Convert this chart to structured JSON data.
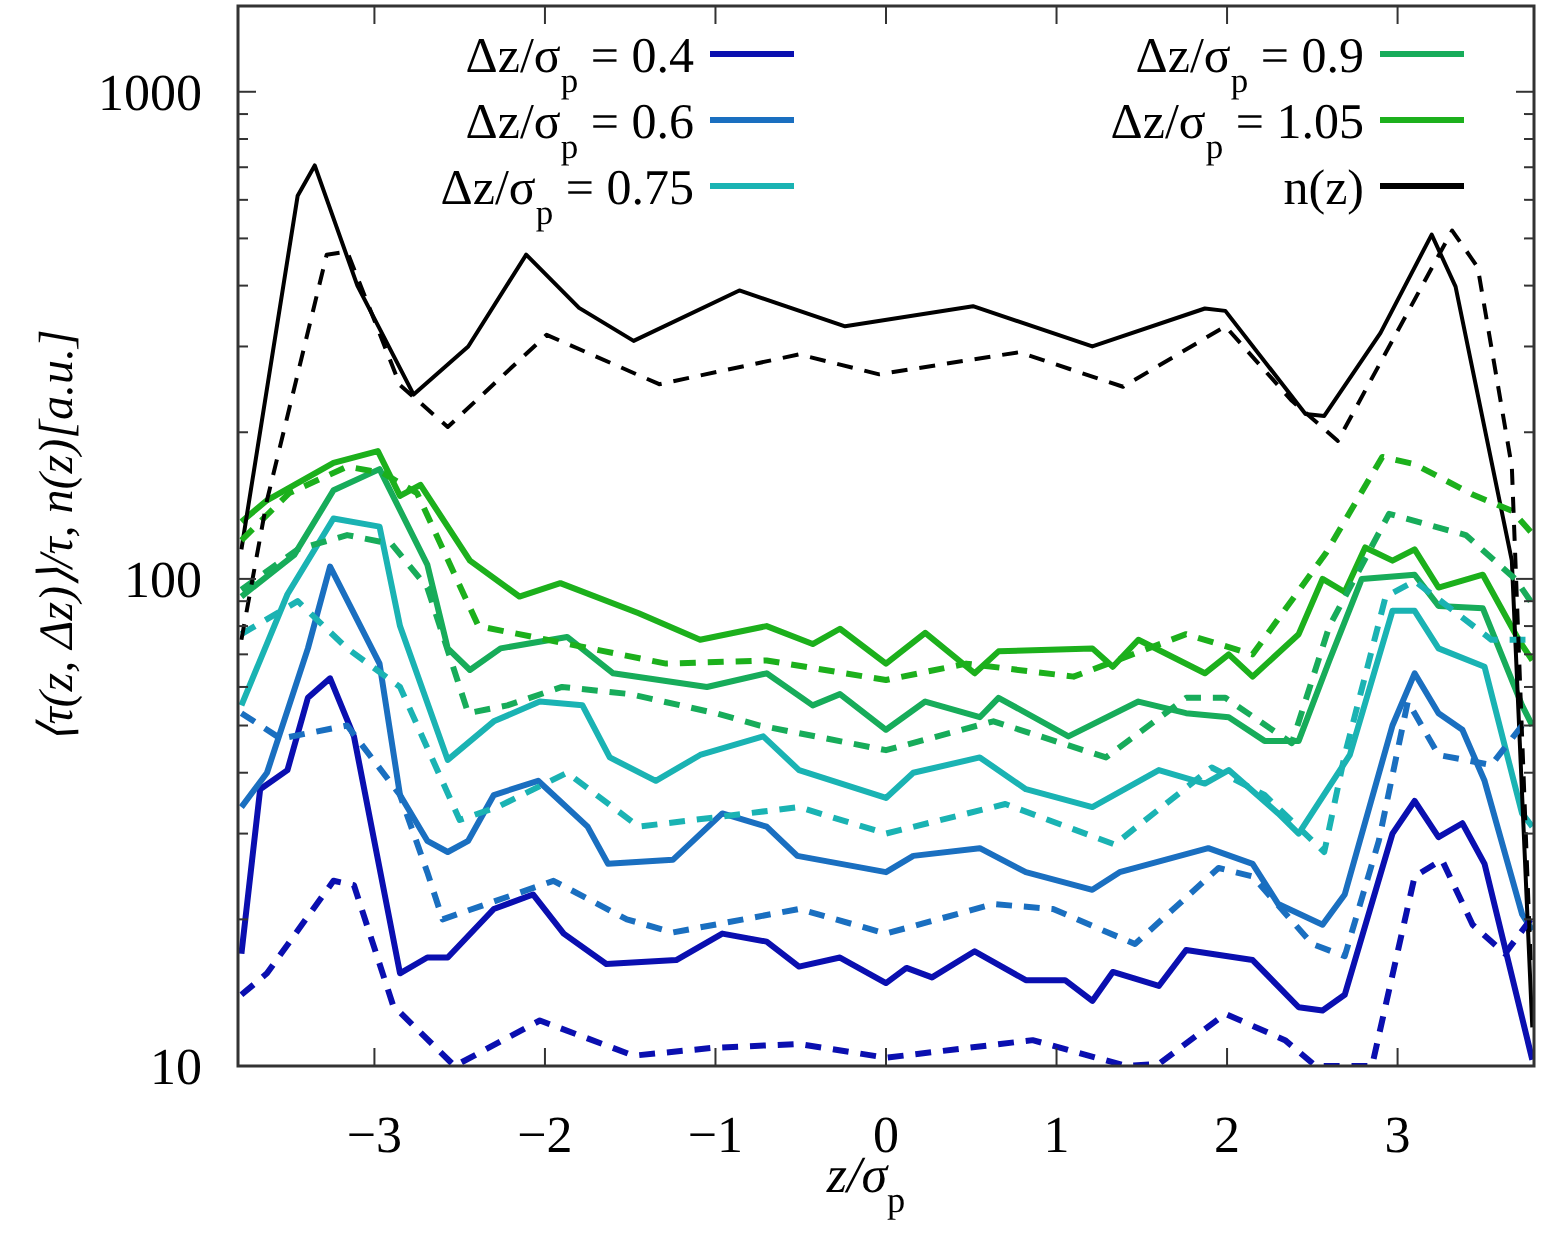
{
  "chart_data": {
    "type": "line",
    "xlabel": "z/σ$_{p}$",
    "ylabel": "⟨τ(z, Δz)⟩/τ,  n(z)[a.u.]",
    "log": "y",
    "xlim": [
      -3.8,
      3.8
    ],
    "ylim": [
      10,
      1500
    ],
    "xticks": [
      {
        "value": -3,
        "label": "−3"
      },
      {
        "value": -2,
        "label": "−2"
      },
      {
        "value": -1,
        "label": "−1"
      },
      0,
      1,
      2,
      3
    ],
    "yticks": [
      10,
      {
        "value": 20,
        "label": null
      },
      {
        "value": 30,
        "label": null
      },
      {
        "value": 40,
        "label": null
      },
      {
        "value": 50,
        "label": null
      },
      {
        "value": 60,
        "label": null
      },
      {
        "value": 70,
        "label": null
      },
      {
        "value": 80,
        "label": null
      },
      {
        "value": 90,
        "label": null
      },
      100,
      {
        "value": 200,
        "label": null
      },
      {
        "value": 300,
        "label": null
      },
      {
        "value": 400,
        "label": null
      },
      {
        "value": 500,
        "label": null
      },
      {
        "value": 600,
        "label": null
      },
      {
        "value": 700,
        "label": null
      },
      {
        "value": 800,
        "label": null
      },
      {
        "value": 900,
        "label": null
      },
      1000
    ],
    "grid": false,
    "legend": "top",
    "series": [
      {
        "name": "Δz/σ$_{p}$ = 0.4",
        "color": "#0a0fb0",
        "line_style": "solid",
        "x": [
          -3.78,
          -3.67,
          -3.51,
          -3.39,
          -3.26,
          -3.12,
          -2.85,
          -2.69,
          -2.57,
          -2.3,
          -2.07,
          -1.89,
          -1.64,
          -1.23,
          -0.96,
          -0.7,
          -0.51,
          -0.27,
          0,
          0.12,
          0.27,
          0.52,
          0.82,
          1.05,
          1.21,
          1.33,
          1.6,
          1.76,
          2.15,
          2.42,
          2.56,
          2.69,
          2.97,
          3.1,
          3.24,
          3.38,
          3.51,
          3.79
        ],
        "values": [
          17,
          37,
          40.5,
          57,
          62.5,
          47.5,
          15.5,
          16.7,
          16.7,
          21,
          22.5,
          18.7,
          16.2,
          16.5,
          18.7,
          18,
          16,
          16.7,
          14.8,
          15.9,
          15.2,
          17.2,
          15,
          15,
          13.6,
          15.6,
          14.6,
          17.3,
          16.5,
          13.2,
          13,
          14,
          30,
          35,
          29.5,
          31.5,
          26,
          10.3
        ]
      },
      {
        "name": "Δz/σ$_{p}$ = 0.6",
        "color": "#1a6fc0",
        "line_style": "solid",
        "x": [
          -3.78,
          -3.63,
          -3.39,
          -3.26,
          -2.97,
          -2.85,
          -2.69,
          -2.57,
          -2.45,
          -2.3,
          -2.04,
          -1.75,
          -1.63,
          -1.25,
          -0.96,
          -0.7,
          -0.52,
          0,
          0.16,
          0.55,
          0.82,
          1.21,
          1.37,
          1.89,
          2.15,
          2.3,
          2.56,
          2.69,
          2.97,
          3.1,
          3.24,
          3.38,
          3.51,
          3.73,
          3.79
        ],
        "values": [
          34,
          40,
          72,
          106,
          67,
          36,
          29,
          27.5,
          29,
          36,
          38.5,
          31,
          26,
          26.5,
          33,
          31,
          27,
          25,
          27,
          28,
          25,
          23,
          25,
          28,
          26,
          21.5,
          19.5,
          22.5,
          50,
          64,
          53,
          49,
          38.5,
          20.5,
          19
        ]
      },
      {
        "name": "Δz/σ$_{p}$ = 0.75",
        "color": "#1ab3b3",
        "line_style": "solid",
        "x": [
          -3.78,
          -3.51,
          -3.24,
          -2.97,
          -2.85,
          -2.57,
          -2.3,
          -2.03,
          -1.78,
          -1.62,
          -1.35,
          -1.09,
          -0.72,
          -0.51,
          0,
          0.16,
          0.55,
          0.82,
          1.21,
          1.6,
          1.87,
          2.01,
          2.3,
          2.42,
          2.72,
          2.97,
          3.1,
          3.24,
          3.51,
          3.73,
          3.79
        ],
        "values": [
          55,
          93,
          133,
          128,
          80,
          42.5,
          51,
          56,
          55,
          43,
          38.5,
          43.5,
          47.5,
          40.5,
          35.5,
          40,
          43,
          37,
          34,
          40.5,
          38,
          40.5,
          33,
          30,
          43.5,
          86,
          86,
          72,
          66,
          33,
          31
        ]
      },
      {
        "name": "Δz/σ$_{p}$ = 0.9",
        "color": "#17ac5a",
        "line_style": "solid",
        "x": [
          -3.78,
          -3.47,
          -3.24,
          -2.97,
          -2.69,
          -2.57,
          -2.44,
          -2.26,
          -1.87,
          -1.6,
          -1.05,
          -0.7,
          -0.43,
          -0.27,
          0,
          0.23,
          0.55,
          0.66,
          1.07,
          1.48,
          1.76,
          2.01,
          2.22,
          2.42,
          2.6,
          2.79,
          3.1,
          3.24,
          3.5,
          3.73,
          3.79
        ],
        "values": [
          92,
          112,
          152,
          168,
          107,
          72,
          65,
          72,
          76,
          64,
          60,
          64,
          55,
          58,
          49,
          56,
          52,
          57,
          47.5,
          56,
          53,
          52,
          46.5,
          46.5,
          68,
          100,
          102,
          88,
          87,
          55,
          50
        ]
      },
      {
        "name": "Δz/σ$_{p}$ = 1.05",
        "color": "#1cb01c",
        "line_style": "solid",
        "x": [
          -3.78,
          -3.63,
          -3.24,
          -2.98,
          -2.85,
          -2.73,
          -2.44,
          -2.15,
          -1.91,
          -1.45,
          -1.09,
          -0.7,
          -0.43,
          -0.27,
          0,
          0.23,
          0.52,
          0.66,
          1.21,
          1.33,
          1.48,
          1.87,
          2.01,
          2.15,
          2.42,
          2.56,
          2.69,
          2.81,
          2.97,
          3.1,
          3.24,
          3.5,
          3.71,
          3.79
        ],
        "values": [
          131,
          145,
          173,
          183,
          148,
          156,
          109,
          92,
          98,
          85,
          75,
          80,
          73.5,
          79,
          67,
          77.5,
          64,
          71,
          72,
          66,
          75,
          64,
          70,
          63,
          77,
          100,
          94,
          116,
          109,
          115,
          96,
          102,
          75,
          68
        ]
      },
      {
        "name": "n(z)",
        "color": "#000000",
        "line_style": "solid",
        "x": [
          -3.78,
          -3.45,
          -3.35,
          -3.1,
          -2.77,
          -2.45,
          -2.11,
          -1.8,
          -1.48,
          -0.86,
          -0.24,
          0.51,
          1.21,
          1.87,
          1.99,
          2.46,
          2.57,
          2.9,
          3.2,
          3.34,
          3.67,
          3.79
        ],
        "values": [
          115,
          612,
          706,
          400,
          239,
          300,
          463,
          360,
          308,
          391,
          330,
          363,
          300,
          359,
          355,
          218,
          216,
          320,
          509,
          398,
          109,
          12
        ]
      },
      {
        "color": "#0a0fb0",
        "line_style": "dashed",
        "x": [
          -3.78,
          -3.63,
          -3.24,
          -3.12,
          -2.89,
          -2.53,
          -2.03,
          -1.48,
          -1.01,
          -0.51,
          0,
          0.86,
          1.41,
          1.6,
          1.99,
          2.34,
          2.52,
          2.7,
          2.85,
          3.1,
          3.26,
          3.44,
          3.63,
          3.78
        ],
        "values": [
          14,
          15.5,
          24,
          23.5,
          13.3,
          10,
          12.4,
          10.5,
          10.9,
          11.1,
          10.4,
          11.3,
          10,
          10.1,
          12.8,
          11.3,
          10,
          10,
          10,
          24.5,
          26.5,
          19.5,
          17,
          20
        ]
      },
      {
        "color": "#1a6fc0",
        "line_style": "dashed",
        "x": [
          -3.78,
          -3.55,
          -3.16,
          -2.85,
          -2.69,
          -2.6,
          -1.95,
          -1.52,
          -1.25,
          -0.51,
          0,
          0.63,
          0.98,
          1.46,
          1.95,
          2.15,
          2.5,
          2.69,
          2.89,
          3.06,
          3.24,
          3.55,
          3.73
        ],
        "values": [
          53,
          47,
          50,
          36,
          25,
          20,
          24,
          20,
          18.8,
          21,
          18.7,
          21.5,
          21,
          17.8,
          25.5,
          24.5,
          17.8,
          16.8,
          29,
          56,
          43.5,
          41.5,
          50
        ]
      },
      {
        "color": "#1ab3b3",
        "line_style": "dashed",
        "x": [
          -3.78,
          -3.45,
          -3.16,
          -2.85,
          -2.5,
          -2.28,
          -1.87,
          -1.45,
          -0.51,
          0,
          0.7,
          1.34,
          1.91,
          2.22,
          2.57,
          2.69,
          2.93,
          3.1,
          3.55,
          3.75
        ],
        "values": [
          77,
          90,
          72,
          60,
          32,
          34,
          40,
          31,
          34,
          30,
          34.5,
          28.5,
          41,
          36,
          27.5,
          43.5,
          92,
          99,
          75,
          75
        ]
      },
      {
        "color": "#17ac5a",
        "line_style": "dashed",
        "x": [
          -3.78,
          -3.45,
          -3.16,
          -2.9,
          -2.69,
          -2.45,
          -2.22,
          -1.9,
          -1.5,
          -1,
          -0.74,
          0,
          0.63,
          1.29,
          1.76,
          1.99,
          2.38,
          2.6,
          2.95,
          3.4,
          3.69,
          3.78
        ],
        "values": [
          95,
          115,
          123,
          118,
          96,
          53,
          55,
          60,
          58,
          53,
          50,
          44.5,
          51,
          43,
          57,
          57,
          46,
          80,
          136,
          123,
          100,
          90
        ]
      },
      {
        "color": "#1cb01c",
        "line_style": "dashed",
        "x": [
          -3.78,
          -3.5,
          -3.16,
          -2.95,
          -2.75,
          -2.39,
          -2.07,
          -1.29,
          -0.7,
          0,
          0.47,
          1.1,
          1.76,
          2.15,
          2.58,
          2.91,
          3.1,
          3.44,
          3.67,
          3.78
        ],
        "values": [
          120,
          150,
          170,
          165,
          150,
          80,
          76,
          67,
          68,
          62,
          67,
          63,
          77,
          70,
          113,
          178,
          172,
          149,
          138,
          125
        ]
      },
      {
        "color": "#000000",
        "line_style": "dashed",
        "x": [
          -3.78,
          -3.63,
          -3.28,
          -3.16,
          -2.85,
          -2.57,
          -1.99,
          -1.33,
          -0.51,
          -0.04,
          0.78,
          1.39,
          1.99,
          2.38,
          2.65,
          3.32,
          3.47,
          3.67,
          3.78
        ],
        "values": [
          75,
          145,
          463,
          470,
          250,
          205,
          317,
          251,
          289,
          263,
          292,
          248,
          330,
          232,
          192,
          519,
          436,
          170,
          16.5
        ]
      }
    ]
  }
}
